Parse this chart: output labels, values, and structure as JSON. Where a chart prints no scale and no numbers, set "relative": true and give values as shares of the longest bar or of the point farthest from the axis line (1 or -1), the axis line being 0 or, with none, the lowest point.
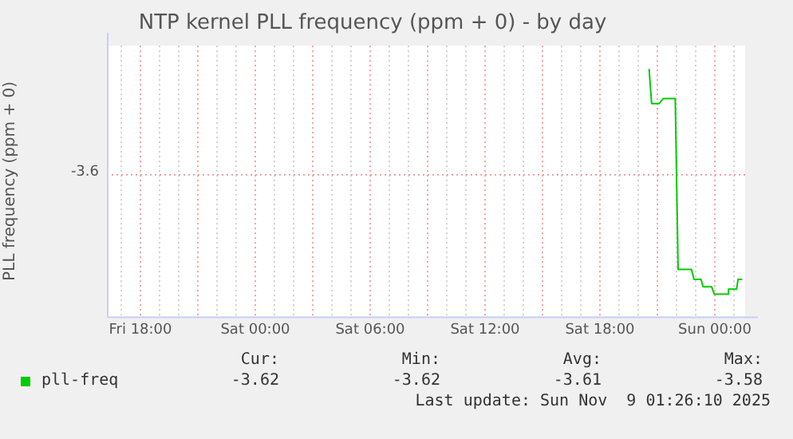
{
  "chart_data": {
    "type": "line",
    "title": "NTP kernel PLL frequency (ppm + 0) - by day",
    "relative": true,
    "xlim": [
      "2025-11-07T16:15",
      "2025-11-09T01:35"
    ],
    "xticks": [
      {
        "value": "2025-11-07T17:00",
        "label": null
      },
      {
        "value": "2025-11-07T18:00",
        "label": "Fri 18:00"
      },
      {
        "value": "2025-11-07T19:00",
        "label": null
      },
      {
        "value": "2025-11-07T20:00",
        "label": null
      },
      {
        "value": "2025-11-07T21:00",
        "label": null
      },
      {
        "value": "2025-11-07T22:00",
        "label": null
      },
      {
        "value": "2025-11-07T23:00",
        "label": null
      },
      {
        "value": "2025-11-08T00:00",
        "label": "Sat 00:00"
      },
      {
        "value": "2025-11-08T01:00",
        "label": null
      },
      {
        "value": "2025-11-08T02:00",
        "label": null
      },
      {
        "value": "2025-11-08T03:00",
        "label": null
      },
      {
        "value": "2025-11-08T04:00",
        "label": null
      },
      {
        "value": "2025-11-08T05:00",
        "label": null
      },
      {
        "value": "2025-11-08T06:00",
        "label": "Sat 06:00"
      },
      {
        "value": "2025-11-08T07:00",
        "label": null
      },
      {
        "value": "2025-11-08T08:00",
        "label": null
      },
      {
        "value": "2025-11-08T09:00",
        "label": null
      },
      {
        "value": "2025-11-08T10:00",
        "label": null
      },
      {
        "value": "2025-11-08T11:00",
        "label": null
      },
      {
        "value": "2025-11-08T12:00",
        "label": "Sat 12:00"
      },
      {
        "value": "2025-11-08T13:00",
        "label": null
      },
      {
        "value": "2025-11-08T14:00",
        "label": null
      },
      {
        "value": "2025-11-08T15:00",
        "label": null
      },
      {
        "value": "2025-11-08T16:00",
        "label": null
      },
      {
        "value": "2025-11-08T17:00",
        "label": null
      },
      {
        "value": "2025-11-08T18:00",
        "label": "Sat 18:00"
      },
      {
        "value": "2025-11-08T19:00",
        "label": null
      },
      {
        "value": "2025-11-08T20:00",
        "label": null
      },
      {
        "value": "2025-11-08T21:00",
        "label": null
      },
      {
        "value": "2025-11-08T22:00",
        "label": null
      },
      {
        "value": "2025-11-08T23:00",
        "label": null
      },
      {
        "value": "2025-11-09T00:00",
        "label": "Sun 00:00"
      },
      {
        "value": "2025-11-09T01:00",
        "label": null
      }
    ],
    "grid": "x",
    "legend": "bottom left",
    "marker": "none",
    "line_style": "solid",
    "series": [
      {
        "name": "pll-freq",
        "color": "#00cc00",
        "x": [
          "2025-11-08T20:34",
          "2025-11-08T20:42",
          "2025-11-08T21:06",
          "2025-11-08T21:18",
          "2025-11-08T21:56",
          "2025-11-08T22:05",
          "2025-11-08T22:47",
          "2025-11-08T22:55",
          "2025-11-08T23:17",
          "2025-11-08T23:23",
          "2025-11-08T23:50",
          "2025-11-08T23:58",
          "2025-11-09T00:40",
          "2025-11-09T00:43",
          "2025-11-09T01:08",
          "2025-11-09T01:13",
          "2025-11-09T01:26"
        ],
        "values": [
          1,
          0.86,
          0.86,
          0.88,
          0.88,
          0.19,
          0.19,
          0.15,
          0.15,
          0.12,
          0.12,
          0.09,
          0.09,
          0.11,
          0.11,
          0.15,
          0.15
        ]
      }
    ],
    "annotations": [
      "PLL frequency (ppm + 0)",
      "-3.6",
      "Cur:",
      "Min:",
      "Avg:",
      "Max:",
      "-3.62",
      "-3.62",
      "-3.61",
      "-3.58",
      "Last update: Sun Nov  9 01:26:10 2025"
    ]
  }
}
